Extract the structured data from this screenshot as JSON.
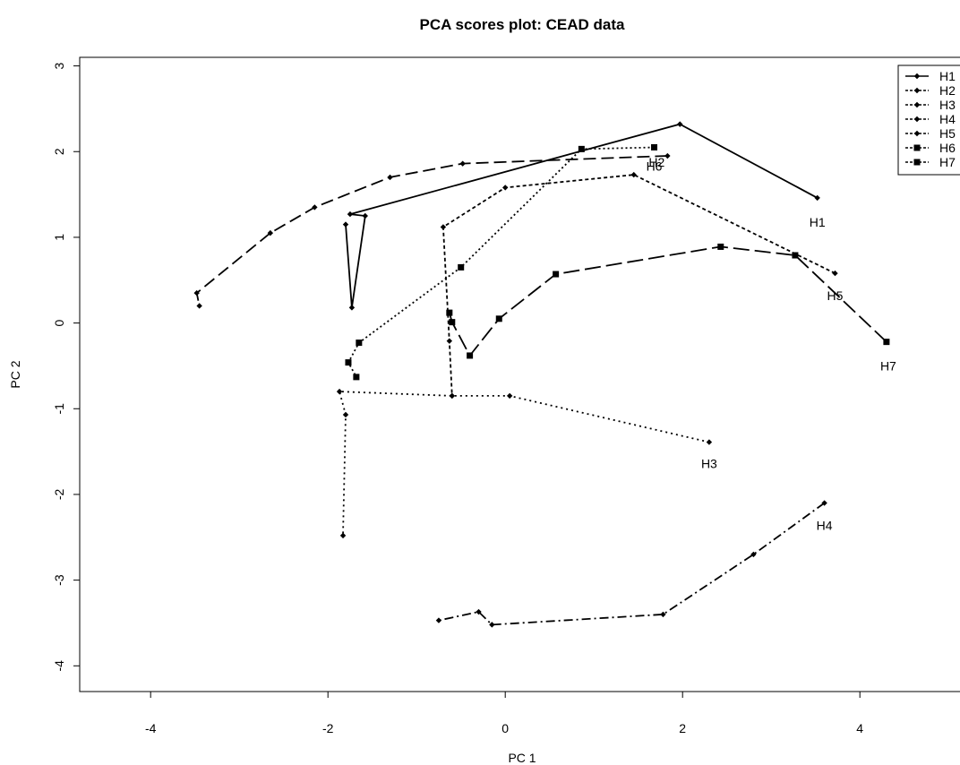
{
  "chart_data": {
    "type": "line",
    "title": "PCA scores plot: CEAD data",
    "xlabel": "PC 1",
    "ylabel": "PC 2",
    "xlim": [
      -4.8,
      5.2
    ],
    "ylim": [
      -4.3,
      3.1
    ],
    "xticks": [
      -4,
      -2,
      0,
      2,
      4
    ],
    "yticks": [
      -4,
      -3,
      -2,
      -1,
      0,
      1,
      2,
      3
    ],
    "grid": false,
    "legend_position": "top-right",
    "series": [
      {
        "name": "H1",
        "label": "H1",
        "marker": "diamond",
        "dash": "",
        "x": [
          3.52,
          1.97,
          -1.75,
          -1.58,
          -1.73,
          -1.8
        ],
        "y": [
          1.46,
          2.32,
          1.27,
          1.25,
          0.18,
          1.15
        ]
      },
      {
        "name": "H2",
        "label": "H2",
        "marker": "diamond",
        "dash": "14 6",
        "x": [
          1.83,
          -0.48,
          -1.3,
          -2.15,
          -2.65,
          -3.48,
          -3.45
        ],
        "y": [
          1.95,
          1.86,
          1.7,
          1.35,
          1.05,
          0.35,
          0.2
        ]
      },
      {
        "name": "H3",
        "label": "H3",
        "marker": "diamond",
        "dash": "2 4",
        "x": [
          2.3,
          0.05,
          -0.6,
          -1.87,
          -1.8,
          -1.83
        ],
        "y": [
          -1.39,
          -0.85,
          -0.85,
          -0.8,
          -1.07,
          -2.48
        ]
      },
      {
        "name": "H4",
        "label": "H4",
        "marker": "diamond",
        "dash": "10 4 2 4",
        "x": [
          3.6,
          2.8,
          1.78,
          -0.15,
          -0.3,
          -0.75
        ],
        "y": [
          -2.1,
          -2.7,
          -3.4,
          -3.52,
          -3.37,
          -3.47
        ]
      },
      {
        "name": "H5",
        "label": "H5",
        "marker": "diamond",
        "dash": "4 3",
        "x": [
          3.72,
          1.45,
          0.0,
          -0.7,
          -0.63,
          -0.6
        ],
        "y": [
          0.58,
          1.73,
          1.58,
          1.12,
          -0.21,
          -0.85
        ]
      },
      {
        "name": "H6",
        "label": "H6",
        "marker": "square",
        "dash": "2 3",
        "x": [
          1.68,
          0.86,
          -0.5,
          -1.65,
          -1.77,
          -1.68
        ],
        "y": [
          2.05,
          2.03,
          0.65,
          -0.23,
          -0.46,
          -0.63
        ]
      },
      {
        "name": "H7",
        "label": "H7",
        "marker": "square",
        "dash": "18 6",
        "x": [
          4.3,
          3.27,
          2.43,
          0.57,
          -0.07,
          -0.4,
          -0.6,
          -0.63
        ],
        "y": [
          -0.22,
          0.79,
          0.89,
          0.57,
          0.05,
          -0.38,
          0.01,
          0.12
        ]
      }
    ]
  }
}
